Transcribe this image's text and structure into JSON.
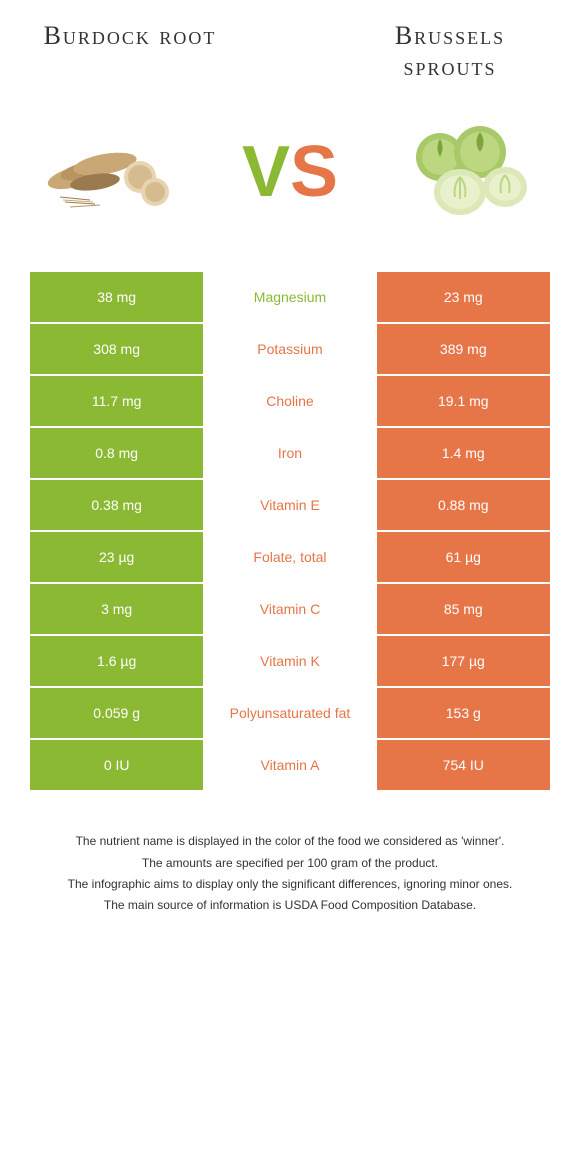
{
  "header": {
    "left_title": "Burdock root",
    "right_title": "Brussels sprouts"
  },
  "vs": {
    "v": "V",
    "s": "S"
  },
  "colors": {
    "green": "#8bb933",
    "orange": "#e67548",
    "burdock_root": "#c9a876",
    "burdock_dark": "#9c7a4f",
    "sprout_outer": "#a8c968",
    "sprout_inner": "#dce8b8",
    "sprout_dark": "#7da33f"
  },
  "rows": [
    {
      "left": "38 mg",
      "label": "Magnesium",
      "right": "23 mg",
      "winner": "green"
    },
    {
      "left": "308 mg",
      "label": "Potassium",
      "right": "389 mg",
      "winner": "orange"
    },
    {
      "left": "11.7 mg",
      "label": "Choline",
      "right": "19.1 mg",
      "winner": "orange"
    },
    {
      "left": "0.8 mg",
      "label": "Iron",
      "right": "1.4 mg",
      "winner": "orange"
    },
    {
      "left": "0.38 mg",
      "label": "Vitamin E",
      "right": "0.88 mg",
      "winner": "orange"
    },
    {
      "left": "23 µg",
      "label": "Folate, total",
      "right": "61 µg",
      "winner": "orange"
    },
    {
      "left": "3 mg",
      "label": "Vitamin C",
      "right": "85 mg",
      "winner": "orange"
    },
    {
      "left": "1.6 µg",
      "label": "Vitamin K",
      "right": "177 µg",
      "winner": "orange"
    },
    {
      "left": "0.059 g",
      "label": "Polyunsaturated fat",
      "right": "153 g",
      "winner": "orange"
    },
    {
      "left": "0 IU",
      "label": "Vitamin A",
      "right": "754 IU",
      "winner": "orange"
    }
  ],
  "footer": {
    "line1": "The nutrient name is displayed in the color of the food we considered as 'winner'.",
    "line2": "The amounts are specified per 100 gram of the product.",
    "line3": "The infographic aims to display only the significant differences, ignoring minor ones.",
    "line4": "The main source of information is USDA Food Composition Database."
  }
}
